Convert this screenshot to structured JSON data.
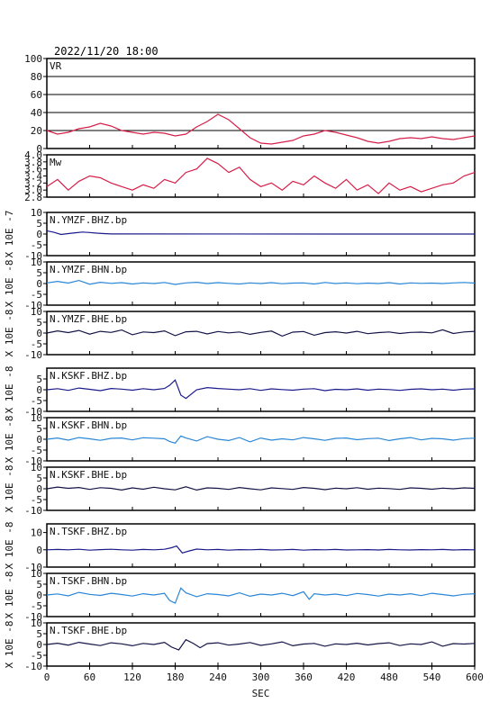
{
  "header": {
    "datetime": "2022/11/20 18:00"
  },
  "colors": {
    "vr": "#d6204a",
    "mw": "#d6204a",
    "bhz": "#1b1b8c",
    "bhn": "#2a86d6",
    "bhe": "#141447",
    "axis": "#000000",
    "grid": "#000000"
  },
  "chart_data": [
    {
      "type": "line",
      "label": "VR",
      "ylim": [
        0,
        100
      ],
      "yticks": [
        "0",
        "20",
        "40",
        "60",
        "80",
        "100"
      ],
      "grid": true,
      "x": [
        0,
        15,
        30,
        45,
        60,
        75,
        90,
        105,
        120,
        135,
        150,
        165,
        180,
        195,
        210,
        225,
        240,
        255,
        270,
        285,
        300,
        315,
        330,
        345,
        360,
        375,
        390,
        405,
        420,
        435,
        450,
        465,
        480,
        495,
        510,
        525,
        540,
        555,
        570,
        585,
        600
      ],
      "y": [
        20,
        16,
        18,
        22,
        24,
        28,
        25,
        20,
        18,
        16,
        18,
        17,
        14,
        16,
        24,
        30,
        38,
        32,
        22,
        12,
        6,
        5,
        7,
        9,
        14,
        16,
        20,
        18,
        15,
        12,
        8,
        6,
        8,
        11,
        12,
        11,
        13,
        11,
        10,
        12,
        14
      ]
    },
    {
      "type": "line",
      "label": "Mw",
      "ylim": [
        2.8,
        4.0
      ],
      "yticks": [
        "2.8",
        "3.0",
        "3.2",
        "3.4",
        "3.6",
        "3.8",
        "4.0"
      ],
      "ytick_labels": [
        "2.8",
        "3.0",
        "3.2",
        "3.4",
        "3.6",
        "3.8",
        "4.0"
      ],
      "x": [
        0,
        15,
        30,
        45,
        60,
        75,
        90,
        105,
        120,
        135,
        150,
        165,
        180,
        195,
        210,
        225,
        240,
        255,
        270,
        285,
        300,
        315,
        330,
        345,
        360,
        375,
        390,
        405,
        420,
        435,
        450,
        465,
        480,
        495,
        510,
        525,
        540,
        555,
        570,
        585,
        600
      ],
      "y": [
        3.1,
        3.3,
        3.0,
        3.25,
        3.4,
        3.35,
        3.2,
        3.1,
        3.0,
        3.15,
        3.05,
        3.3,
        3.2,
        3.5,
        3.6,
        3.9,
        3.75,
        3.5,
        3.65,
        3.3,
        3.1,
        3.2,
        3.0,
        3.25,
        3.15,
        3.4,
        3.2,
        3.05,
        3.3,
        3.0,
        3.15,
        2.9,
        3.2,
        3.0,
        3.1,
        2.95,
        3.05,
        3.15,
        3.2,
        3.4,
        3.5
      ]
    },
    {
      "type": "line",
      "label": "N.YMZF.BHZ.bp",
      "unit": "X 10E -7",
      "ylim": [
        -10,
        10
      ],
      "yticks": [
        "-10",
        "-5",
        "0",
        "5",
        "10"
      ],
      "x": [
        0,
        10,
        20,
        30,
        40,
        50,
        60,
        70,
        80,
        90,
        600
      ],
      "y": [
        1.5,
        0.8,
        -0.2,
        0.2,
        0.6,
        0.9,
        0.7,
        0.4,
        0.2,
        0.05,
        0.0
      ]
    },
    {
      "type": "line",
      "label": "N.YMZF.BHN.bp",
      "unit": "X 10E -8",
      "ylim": [
        -10,
        10
      ],
      "yticks": [
        "-10",
        "-5",
        "0",
        "5",
        "10"
      ],
      "x": [
        0,
        15,
        30,
        45,
        60,
        75,
        90,
        105,
        120,
        135,
        150,
        165,
        180,
        195,
        210,
        225,
        240,
        255,
        270,
        285,
        300,
        315,
        330,
        345,
        360,
        375,
        390,
        405,
        420,
        435,
        450,
        465,
        480,
        495,
        510,
        525,
        540,
        555,
        570,
        585,
        600
      ],
      "y": [
        0.3,
        1.0,
        0.2,
        1.4,
        -0.3,
        0.6,
        0.1,
        0.4,
        -0.2,
        0.3,
        0.0,
        0.5,
        -0.4,
        0.3,
        0.6,
        0.0,
        0.4,
        0.1,
        -0.2,
        0.3,
        0.0,
        0.4,
        -0.1,
        0.2,
        0.3,
        -0.2,
        0.5,
        0.0,
        0.3,
        -0.1,
        0.2,
        0.0,
        0.4,
        -0.2,
        0.3,
        0.1,
        0.2,
        0.0,
        0.3,
        0.5,
        0.2
      ]
    },
    {
      "type": "line",
      "label": "N.YMZF.BHE.bp",
      "unit": "X 10E -8",
      "ylim": [
        -10,
        10
      ],
      "yticks": [
        "-10",
        "-5",
        "0",
        "5",
        "10"
      ],
      "x": [
        0,
        15,
        30,
        45,
        60,
        75,
        90,
        105,
        120,
        135,
        150,
        165,
        180,
        195,
        210,
        225,
        240,
        255,
        270,
        285,
        300,
        315,
        330,
        345,
        360,
        375,
        390,
        405,
        420,
        435,
        450,
        465,
        480,
        495,
        510,
        525,
        540,
        555,
        570,
        585,
        600
      ],
      "y": [
        0.0,
        1.0,
        0.2,
        1.2,
        -0.5,
        0.8,
        0.3,
        1.4,
        -0.8,
        0.5,
        0.2,
        1.0,
        -1.2,
        0.6,
        0.8,
        -0.4,
        0.7,
        0.1,
        0.5,
        -0.6,
        0.3,
        0.9,
        -1.4,
        0.4,
        0.7,
        -1.0,
        0.2,
        0.6,
        0.0,
        0.8,
        -0.3,
        0.2,
        0.5,
        -0.2,
        0.3,
        0.4,
        0.1,
        1.5,
        -0.2,
        0.5,
        0.8
      ]
    },
    {
      "type": "line",
      "label": "N.KSKF.BHZ.bp",
      "unit": "X 10E -8",
      "ylim": [
        -10,
        10
      ],
      "yticks": [
        "-10",
        "-5",
        "0",
        "5"
      ],
      "x": [
        0,
        15,
        30,
        45,
        60,
        75,
        90,
        105,
        120,
        135,
        150,
        165,
        172,
        180,
        188,
        195,
        210,
        225,
        240,
        255,
        270,
        285,
        300,
        315,
        330,
        345,
        360,
        375,
        390,
        405,
        420,
        435,
        450,
        465,
        480,
        495,
        510,
        525,
        540,
        555,
        570,
        585,
        600
      ],
      "y": [
        0.0,
        0.5,
        -0.3,
        0.8,
        0.2,
        -0.4,
        0.6,
        0.3,
        -0.2,
        0.5,
        0.0,
        0.6,
        2.0,
        4.5,
        -2.5,
        -4.0,
        0.0,
        1.0,
        0.6,
        0.3,
        0.0,
        0.5,
        -0.3,
        0.4,
        0.1,
        -0.2,
        0.3,
        0.5,
        -0.4,
        0.2,
        0.0,
        0.4,
        -0.2,
        0.3,
        0.1,
        -0.3,
        0.2,
        0.4,
        0.0,
        0.3,
        -0.2,
        0.3,
        0.4
      ]
    },
    {
      "type": "line",
      "label": "N.KSKF.BHN.bp",
      "unit": "X 10E -8",
      "ylim": [
        -10,
        10
      ],
      "yticks": [
        "-10",
        "-5",
        "0",
        "5",
        "10"
      ],
      "x": [
        0,
        15,
        30,
        45,
        60,
        75,
        90,
        105,
        120,
        135,
        150,
        165,
        172,
        180,
        188,
        195,
        210,
        225,
        240,
        255,
        270,
        285,
        300,
        315,
        330,
        345,
        360,
        375,
        390,
        405,
        420,
        435,
        450,
        465,
        480,
        495,
        510,
        525,
        540,
        555,
        570,
        585,
        600
      ],
      "y": [
        0.0,
        0.6,
        -0.4,
        0.8,
        0.2,
        -0.5,
        0.4,
        0.6,
        -0.3,
        0.7,
        0.5,
        0.2,
        -1.0,
        -1.8,
        1.5,
        0.6,
        -0.8,
        1.2,
        0.0,
        -0.6,
        0.8,
        -1.2,
        0.6,
        -0.4,
        0.2,
        -0.3,
        0.8,
        0.2,
        -0.5,
        0.4,
        0.6,
        -0.2,
        0.3,
        0.5,
        -0.6,
        0.2,
        0.8,
        -0.3,
        0.4,
        0.2,
        -0.4,
        0.3,
        0.5
      ]
    },
    {
      "type": "line",
      "label": "N.KSKF.BHE.bp",
      "unit": "X 10E -8",
      "ylim": [
        -10,
        10
      ],
      "yticks": [
        "-10",
        "-5",
        "0",
        "5",
        "10"
      ],
      "x": [
        0,
        15,
        30,
        45,
        60,
        75,
        90,
        105,
        120,
        135,
        150,
        165,
        180,
        195,
        210,
        225,
        240,
        255,
        270,
        285,
        300,
        315,
        330,
        345,
        360,
        375,
        390,
        405,
        420,
        435,
        450,
        465,
        480,
        495,
        510,
        525,
        540,
        555,
        570,
        585,
        600
      ],
      "y": [
        0.0,
        0.8,
        0.2,
        0.6,
        -0.3,
        0.5,
        0.2,
        -0.6,
        0.4,
        -0.2,
        0.7,
        0.0,
        -0.5,
        0.9,
        -0.6,
        0.4,
        0.2,
        -0.3,
        0.6,
        0.0,
        -0.5,
        0.4,
        0.1,
        -0.3,
        0.6,
        0.2,
        -0.4,
        0.3,
        0.0,
        0.5,
        -0.2,
        0.3,
        0.1,
        -0.3,
        0.4,
        0.2,
        -0.2,
        0.3,
        0.0,
        0.4,
        0.2
      ]
    },
    {
      "type": "line",
      "label": "N.TSKF.BHZ.bp",
      "unit": "X 10E -8",
      "ylim": [
        -10,
        15
      ],
      "yticks": [
        "-10",
        "0",
        "10"
      ],
      "x": [
        0,
        15,
        30,
        45,
        60,
        75,
        90,
        105,
        120,
        135,
        150,
        165,
        175,
        182,
        190,
        200,
        210,
        225,
        240,
        255,
        270,
        285,
        300,
        315,
        330,
        345,
        360,
        375,
        390,
        405,
        420,
        435,
        450,
        465,
        480,
        495,
        510,
        525,
        540,
        555,
        570,
        585,
        600
      ],
      "y": [
        0.0,
        0.2,
        0.0,
        0.3,
        -0.2,
        0.1,
        0.3,
        0.0,
        -0.2,
        0.2,
        0.0,
        0.3,
        1.2,
        2.2,
        -1.8,
        -0.6,
        0.4,
        0.0,
        0.2,
        -0.2,
        0.1,
        0.0,
        0.2,
        -0.1,
        0.0,
        0.2,
        -0.2,
        0.1,
        0.0,
        0.2,
        -0.1,
        0.0,
        0.1,
        -0.1,
        0.2,
        0.0,
        -0.1,
        0.1,
        0.0,
        0.2,
        -0.1,
        0.1,
        0.0
      ]
    },
    {
      "type": "line",
      "label": "N.TSKF.BHN.bp",
      "unit": "X 10E -8",
      "ylim": [
        -10,
        10
      ],
      "yticks": [
        "-10",
        "-5",
        "0",
        "5",
        "10"
      ],
      "x": [
        0,
        15,
        30,
        45,
        60,
        75,
        90,
        105,
        120,
        135,
        150,
        165,
        172,
        180,
        188,
        195,
        210,
        225,
        240,
        255,
        270,
        285,
        300,
        315,
        330,
        345,
        360,
        368,
        375,
        390,
        405,
        420,
        435,
        450,
        465,
        480,
        495,
        510,
        525,
        540,
        555,
        570,
        585,
        600
      ],
      "y": [
        0.0,
        0.5,
        -0.4,
        1.2,
        0.3,
        -0.2,
        0.8,
        0.2,
        -0.5,
        0.6,
        0.0,
        0.8,
        -2.5,
        -3.8,
        3.2,
        1.0,
        -0.8,
        0.6,
        0.2,
        -0.4,
        1.0,
        -0.6,
        0.4,
        0.0,
        0.8,
        -0.3,
        1.5,
        -2.0,
        0.6,
        0.0,
        0.4,
        -0.3,
        0.7,
        0.2,
        -0.5,
        0.4,
        0.0,
        0.6,
        -0.3,
        0.8,
        0.2,
        -0.4,
        0.3,
        0.6
      ]
    },
    {
      "type": "line",
      "label": "N.TSKF.BHE.bp",
      "unit": "X 10E -8",
      "ylim": [
        -10,
        10
      ],
      "yticks": [
        "-10",
        "-5",
        "0",
        "5",
        "10"
      ],
      "xlabel": "SEC",
      "xticks": [
        "0",
        "60",
        "120",
        "180",
        "240",
        "300",
        "360",
        "420",
        "480",
        "540",
        "600"
      ],
      "x": [
        0,
        15,
        30,
        45,
        60,
        75,
        90,
        105,
        120,
        135,
        150,
        165,
        175,
        185,
        195,
        205,
        215,
        225,
        240,
        255,
        270,
        285,
        300,
        315,
        330,
        345,
        360,
        375,
        390,
        405,
        420,
        435,
        450,
        465,
        480,
        495,
        510,
        525,
        540,
        555,
        570,
        585,
        600
      ],
      "y": [
        0.0,
        0.6,
        -0.3,
        1.0,
        0.2,
        -0.5,
        0.8,
        0.3,
        -0.6,
        0.5,
        0.0,
        1.0,
        -1.2,
        -2.5,
        2.2,
        0.6,
        -1.5,
        0.4,
        0.8,
        -0.3,
        0.2,
        0.9,
        -0.4,
        0.3,
        1.2,
        -0.6,
        0.2,
        0.5,
        -0.8,
        0.3,
        0.0,
        0.6,
        -0.2,
        0.4,
        0.8,
        -0.5,
        0.3,
        0.0,
        1.2,
        -0.8,
        0.4,
        0.2,
        0.5
      ]
    }
  ]
}
